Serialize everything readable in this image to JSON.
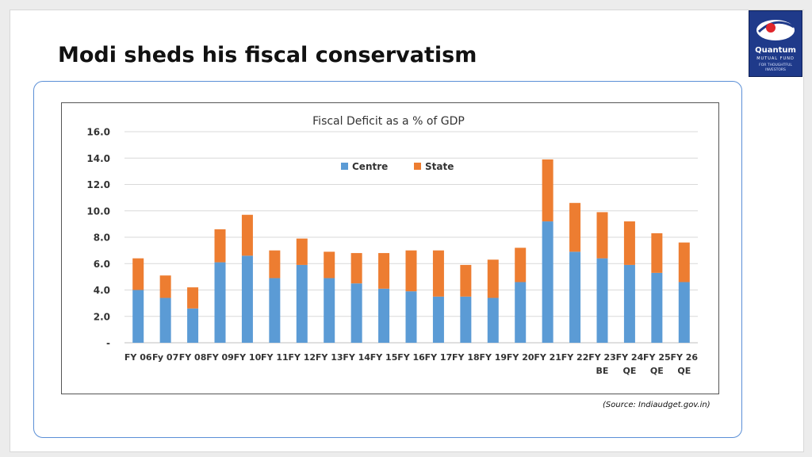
{
  "slide": {
    "title": "Modi sheds his fiscal conservatism",
    "source": "(Source: Indiaudget.gov.in)"
  },
  "logo": {
    "name": "Quantum",
    "subtitle": "MUTUAL FUND",
    "tagline": "FOR THOUGHTFUL INVESTORS",
    "icon": "quantum-swirl-icon"
  },
  "colors": {
    "centre": "#5b9bd5",
    "state": "#ed7d31",
    "accent": "#1f3a8a"
  },
  "chart_data": {
    "type": "bar",
    "stacked": true,
    "title": "Fiscal Deficit as a % of GDP",
    "categories": [
      "FY 06",
      "Fy 07",
      "FY 08",
      "FY 09",
      "FY 10",
      "FY 11",
      "FY 12",
      "FY 13",
      "FY 14",
      "FY 15",
      "FY 16",
      "FY 17",
      "FY 18",
      "FY 19",
      "FY 20",
      "FY 21",
      "FY 22",
      "FY 23 BE",
      "FY 24 QE",
      "FY 25 QE",
      "FY 26 QE"
    ],
    "series": [
      {
        "name": "Centre",
        "values": [
          4.0,
          3.4,
          2.6,
          6.1,
          6.6,
          4.9,
          5.9,
          4.9,
          4.5,
          4.1,
          3.9,
          3.5,
          3.5,
          3.4,
          4.6,
          9.2,
          6.9,
          6.4,
          5.9,
          5.3,
          4.6
        ]
      },
      {
        "name": "State",
        "values": [
          2.4,
          1.7,
          1.6,
          2.5,
          3.1,
          2.1,
          2.0,
          2.0,
          2.3,
          2.7,
          3.1,
          3.5,
          2.4,
          2.9,
          2.6,
          4.7,
          3.7,
          3.5,
          3.3,
          3.0,
          3.0
        ]
      }
    ],
    "yticks": [
      "-",
      "2.0",
      "4.0",
      "6.0",
      "8.0",
      "10.0",
      "12.0",
      "14.0",
      "16.0"
    ],
    "ylim": [
      0,
      16
    ],
    "legend_position": "top-center",
    "grid": true
  }
}
